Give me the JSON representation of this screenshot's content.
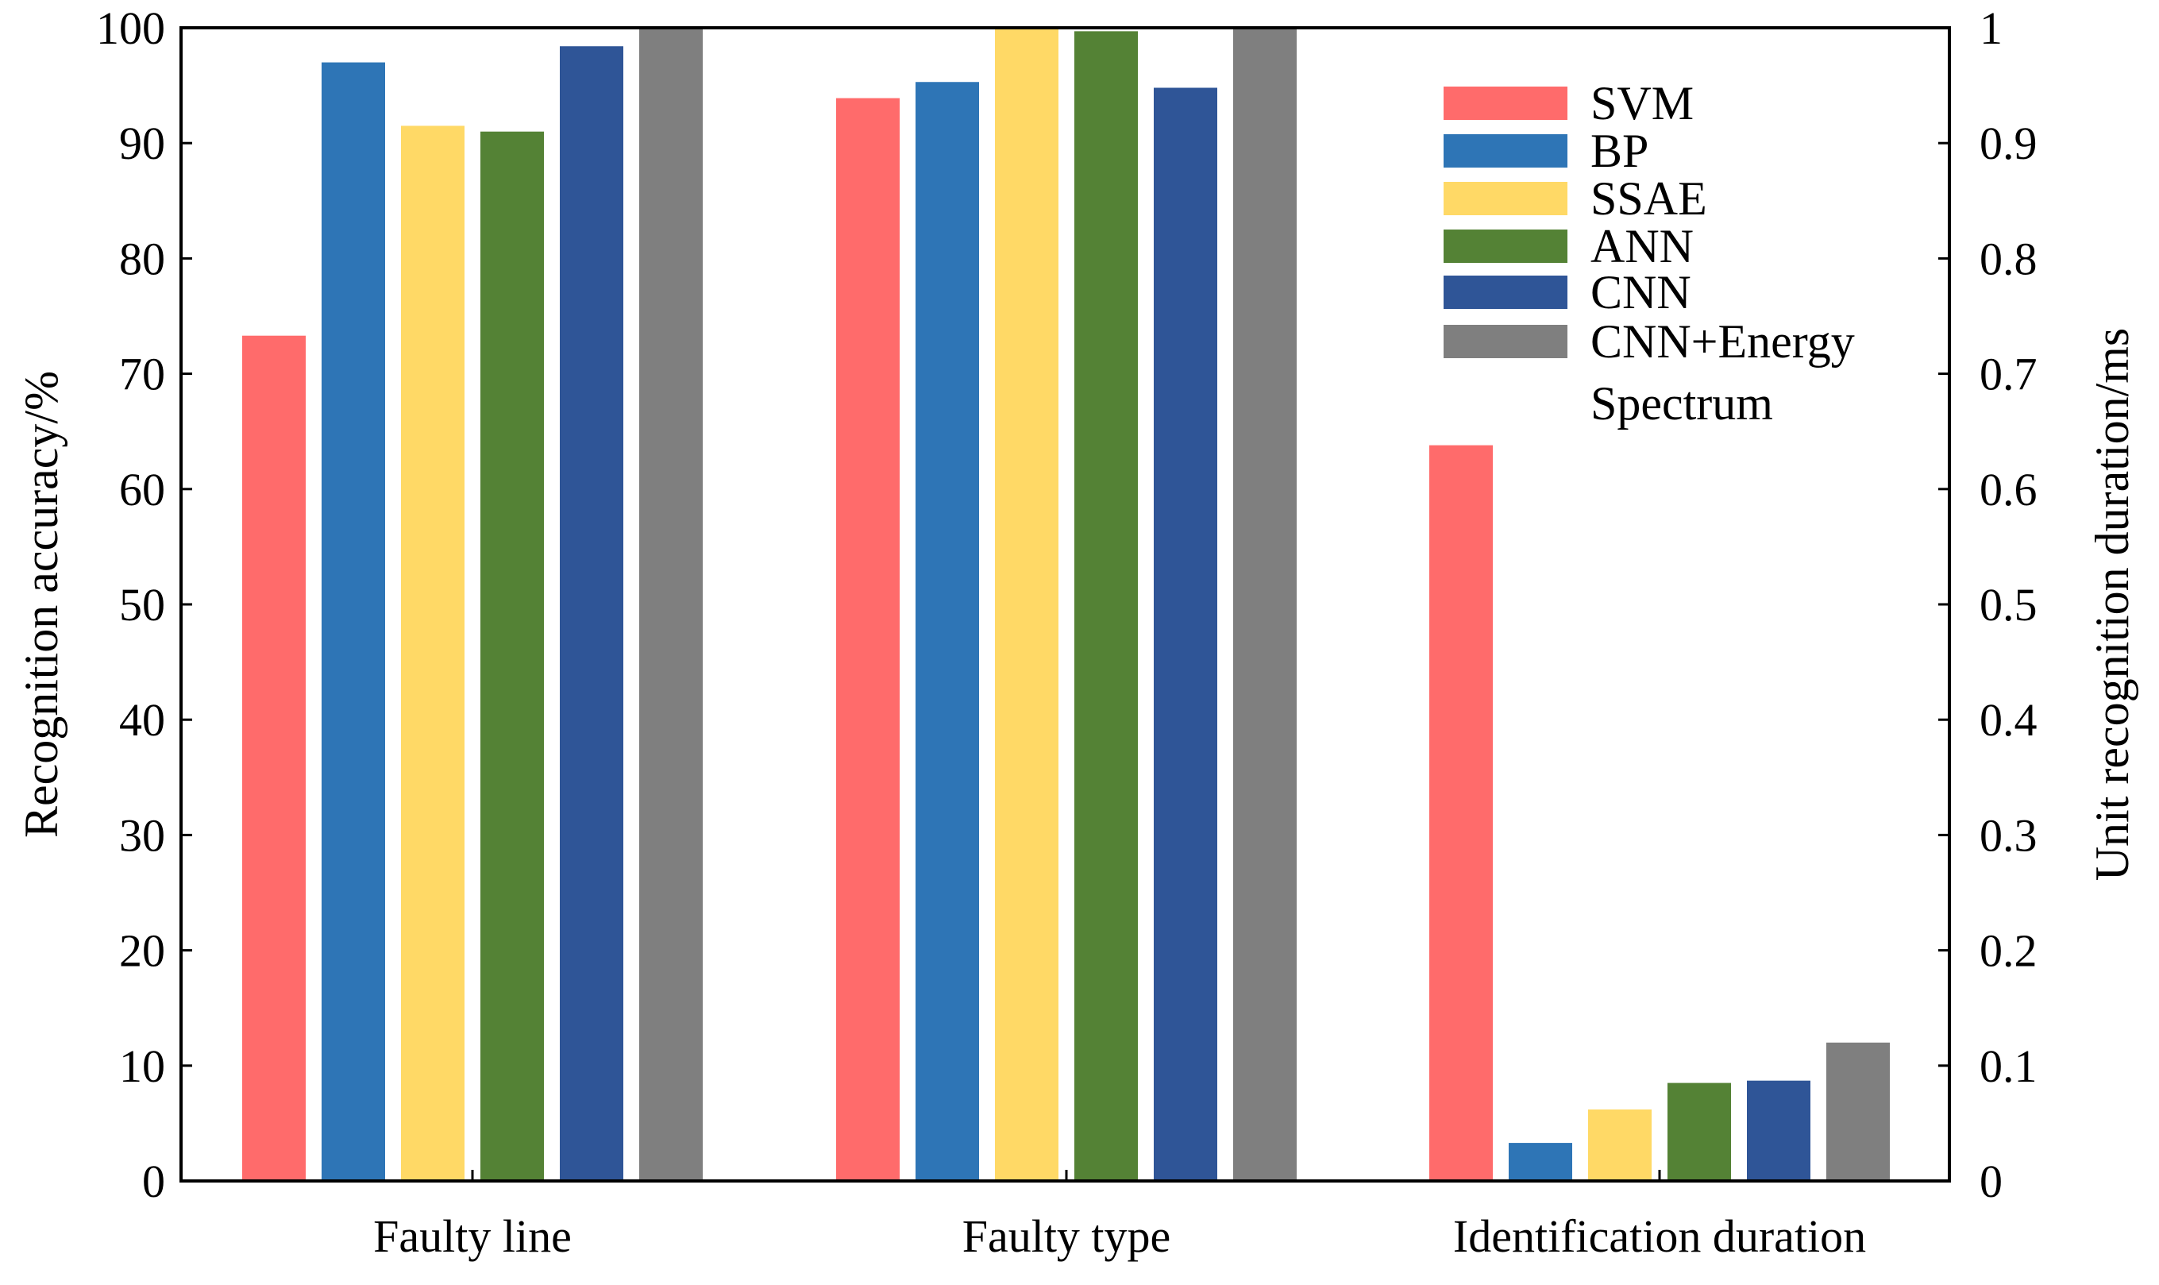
{
  "chart_data": {
    "type": "bar",
    "categories": [
      "Faulty line",
      "Faulty type",
      "Identification duration"
    ],
    "series": [
      {
        "name": "SVM",
        "color": "#ff6b6b",
        "values": [
          73.3,
          93.9,
          0.638
        ]
      },
      {
        "name": "BP",
        "color": "#2e75b6",
        "values": [
          97.0,
          95.3,
          0.033
        ]
      },
      {
        "name": "SSAE",
        "color": "#ffd966",
        "values": [
          91.5,
          100.0,
          0.062
        ]
      },
      {
        "name": "ANN",
        "color": "#548235",
        "values": [
          91.0,
          99.7,
          0.085
        ]
      },
      {
        "name": "CNN",
        "color": "#2f5597",
        "values": [
          98.4,
          94.8,
          0.087
        ]
      },
      {
        "name": "CNN+Energy Spectrum",
        "color": "#7f7f7f",
        "values": [
          100.0,
          100.0,
          0.12
        ]
      }
    ],
    "left_axis": {
      "label": "Recognition accuracy/%",
      "ylim": [
        0,
        100
      ],
      "ticks": [
        "0",
        "10",
        "20",
        "30",
        "40",
        "50",
        "60",
        "70",
        "80",
        "90",
        "100"
      ]
    },
    "right_axis": {
      "label": "Unit recognition duration/ms",
      "ylim": [
        0,
        1
      ],
      "ticks": [
        "0",
        "0.1",
        "0.2",
        "0.3",
        "0.4",
        "0.5",
        "0.6",
        "0.7",
        "0.8",
        "0.9",
        "1"
      ],
      "applies_to_category": "Identification duration"
    },
    "legend": {
      "position": "top-right",
      "entries": [
        {
          "lines": [
            "SVM"
          ]
        },
        {
          "lines": [
            "BP"
          ]
        },
        {
          "lines": [
            "SSAE"
          ]
        },
        {
          "lines": [
            "ANN"
          ]
        },
        {
          "lines": [
            "CNN"
          ]
        },
        {
          "lines": [
            "CNN+Energy",
            "Spectrum"
          ]
        }
      ]
    }
  }
}
